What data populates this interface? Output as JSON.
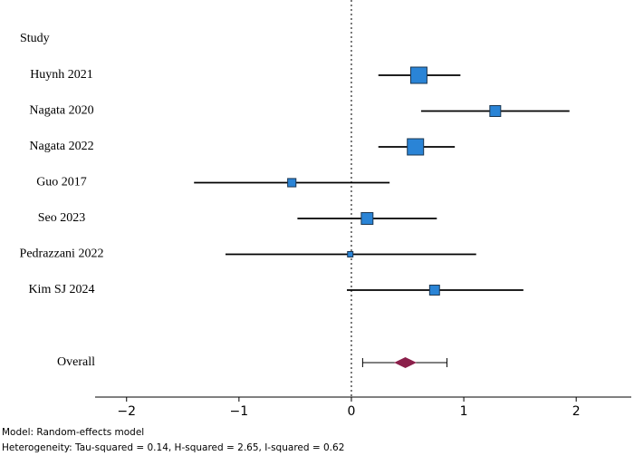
{
  "chart_data": {
    "type": "forest",
    "header": "Study",
    "studies": [
      "Huynh 2021",
      "Nagata 2020",
      "Nagata 2022",
      "Guo 2017",
      "Seo 2023",
      "Pedrazzani 2022",
      "Kim SJ 2024"
    ],
    "estimates": [
      0.6,
      1.28,
      0.57,
      -0.53,
      0.14,
      -0.01,
      0.74
    ],
    "ci_lower": [
      0.24,
      0.62,
      0.24,
      -1.4,
      -0.48,
      -1.12,
      -0.04
    ],
    "ci_upper": [
      0.97,
      1.94,
      0.92,
      0.34,
      0.76,
      1.11,
      1.53
    ],
    "weights": [
      27,
      12,
      27,
      7,
      14,
      3,
      10
    ],
    "overall": {
      "label": "Overall",
      "estimate": 0.48,
      "ci_lower": 0.38,
      "ci_upper": 0.58,
      "pi_lower": 0.1,
      "pi_upper": 0.85
    },
    "reference": 0,
    "xlim": [
      -2.28,
      2.49
    ],
    "xticks": [
      {
        "value": -2,
        "label": "−2"
      },
      {
        "value": -1,
        "label": "−1"
      },
      0,
      1,
      2
    ],
    "color": "#2a84d6",
    "overall_color": "#8b1f4a",
    "notes": [
      "Model: Random-effects model",
      "Heterogeneity: Tau-squared = 0.14, H-squared = 2.65, I-squared = 0.62"
    ]
  }
}
